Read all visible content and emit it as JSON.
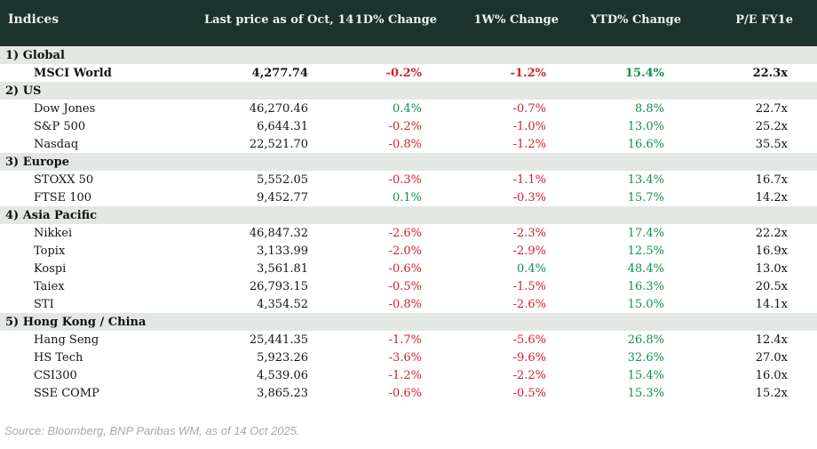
{
  "chart_data": {
    "type": "table",
    "title": "Indices",
    "columns": [
      "Indices",
      "Last price as of Oct, 14",
      "1D% Change",
      "1W% Change",
      "YTD% Change",
      "P/E FY1e"
    ],
    "sections": [
      {
        "label": "1) Global",
        "rows": [
          {
            "name": "MSCI World",
            "last_price": "4,277.74",
            "chg_1d": "-0.2%",
            "chg_1w": "-1.2%",
            "chg_ytd": "15.4%",
            "pe": "22.3x",
            "bold": true
          }
        ]
      },
      {
        "label": "2) US",
        "rows": [
          {
            "name": "Dow Jones",
            "last_price": "46,270.46",
            "chg_1d": "0.4%",
            "chg_1w": "-0.7%",
            "chg_ytd": "8.8%",
            "pe": "22.7x",
            "bold": false
          },
          {
            "name": "S&P 500",
            "last_price": "6,644.31",
            "chg_1d": "-0.2%",
            "chg_1w": "-1.0%",
            "chg_ytd": "13.0%",
            "pe": "25.2x",
            "bold": false
          },
          {
            "name": "Nasdaq",
            "last_price": "22,521.70",
            "chg_1d": "-0.8%",
            "chg_1w": "-1.2%",
            "chg_ytd": "16.6%",
            "pe": "35.5x",
            "bold": false
          }
        ]
      },
      {
        "label": "3) Europe",
        "rows": [
          {
            "name": "STOXX 50",
            "last_price": "5,552.05",
            "chg_1d": "-0.3%",
            "chg_1w": "-1.1%",
            "chg_ytd": "13.4%",
            "pe": "16.7x",
            "bold": false
          },
          {
            "name": "FTSE 100",
            "last_price": "9,452.77",
            "chg_1d": "0.1%",
            "chg_1w": "-0.3%",
            "chg_ytd": "15.7%",
            "pe": "14.2x",
            "bold": false
          }
        ]
      },
      {
        "label": "4) Asia Pacific",
        "rows": [
          {
            "name": "Nikkei",
            "last_price": "46,847.32",
            "chg_1d": "-2.6%",
            "chg_1w": "-2.3%",
            "chg_ytd": "17.4%",
            "pe": "22.2x",
            "bold": false
          },
          {
            "name": "Topix",
            "last_price": "3,133.99",
            "chg_1d": "-2.0%",
            "chg_1w": "-2.9%",
            "chg_ytd": "12.5%",
            "pe": "16.9x",
            "bold": false
          },
          {
            "name": "Kospi",
            "last_price": "3,561.81",
            "chg_1d": "-0.6%",
            "chg_1w": "0.4%",
            "chg_ytd": "48.4%",
            "pe": "13.0x",
            "bold": false
          },
          {
            "name": "Taiex",
            "last_price": "26,793.15",
            "chg_1d": "-0.5%",
            "chg_1w": "-1.5%",
            "chg_ytd": "16.3%",
            "pe": "20.5x",
            "bold": false
          },
          {
            "name": "STI",
            "last_price": "4,354.52",
            "chg_1d": "-0.8%",
            "chg_1w": "-2.6%",
            "chg_ytd": "15.0%",
            "pe": "14.1x",
            "bold": false
          }
        ]
      },
      {
        "label": "5) Hong Kong / China",
        "rows": [
          {
            "name": "Hang Seng",
            "last_price": "25,441.35",
            "chg_1d": "-1.7%",
            "chg_1w": "-5.6%",
            "chg_ytd": "26.8%",
            "pe": "12.4x",
            "bold": false
          },
          {
            "name": "HS Tech",
            "last_price": "5,923.26",
            "chg_1d": "-3.6%",
            "chg_1w": "-9.6%",
            "chg_ytd": "32.6%",
            "pe": "27.0x",
            "bold": false
          },
          {
            "name": "CSI300",
            "last_price": "4,539.06",
            "chg_1d": "-1.2%",
            "chg_1w": "-2.2%",
            "chg_ytd": "15.4%",
            "pe": "16.0x",
            "bold": false
          },
          {
            "name": "SSE COMP",
            "last_price": "3,865.23",
            "chg_1d": "-0.6%",
            "chg_1w": "-0.5%",
            "chg_ytd": "15.3%",
            "pe": "15.2x",
            "bold": false
          }
        ]
      }
    ],
    "value_color_rule": "negative values red, non-negative values green; last price and P/E black"
  },
  "footer": {
    "source": "Source: Bloomberg, BNP Paribas WM, as of 14 Oct 2025."
  },
  "colors": {
    "header_bg": "#1a332c",
    "section_bg": "#e3e8e4",
    "negative": "#d0202d",
    "positive": "#0c9146",
    "page_bg": "#ffffff"
  }
}
